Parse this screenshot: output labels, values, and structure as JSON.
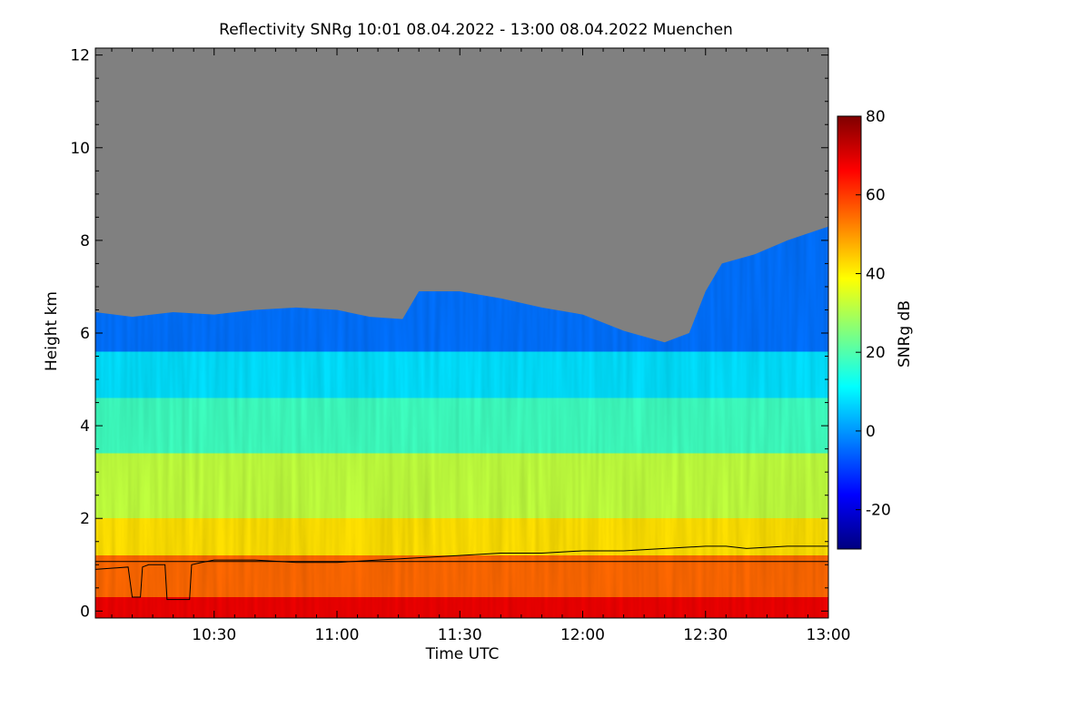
{
  "chart_data": {
    "type": "heatmap",
    "title": "Reflectivity SNRg   10:01 08.04.2022 - 13:00 08.04.2022 Muenchen",
    "xlabel": "Time UTC",
    "ylabel": "Height km",
    "x_range_minutes": [
      601,
      780
    ],
    "x_ticks": [
      {
        "label": "10:30",
        "minutes": 630
      },
      {
        "label": "11:00",
        "minutes": 660
      },
      {
        "label": "11:30",
        "minutes": 690
      },
      {
        "label": "12:00",
        "minutes": 720
      },
      {
        "label": "12:30",
        "minutes": 750
      },
      {
        "label": "13:00",
        "minutes": 780
      }
    ],
    "ylim": [
      -0.15,
      12.15
    ],
    "y_ticks": [
      0,
      2,
      4,
      6,
      8,
      10,
      12
    ],
    "colorbar": {
      "label": "SNRg dB",
      "range": [
        -30,
        80
      ],
      "ticks": [
        -20,
        0,
        20,
        40,
        60,
        80
      ],
      "colors": [
        "#00007f",
        "#0000ff",
        "#007fff",
        "#00ffff",
        "#7fff7f",
        "#ffff00",
        "#ff7f00",
        "#ff0000",
        "#7f0000"
      ]
    },
    "no_signal_color": "#808080",
    "signal_top_km": [
      {
        "t": 601,
        "h": 6.45
      },
      {
        "t": 610,
        "h": 6.35
      },
      {
        "t": 620,
        "h": 6.45
      },
      {
        "t": 630,
        "h": 6.4
      },
      {
        "t": 640,
        "h": 6.5
      },
      {
        "t": 650,
        "h": 6.55
      },
      {
        "t": 660,
        "h": 6.5
      },
      {
        "t": 668,
        "h": 6.35
      },
      {
        "t": 676,
        "h": 6.3
      },
      {
        "t": 680,
        "h": 6.9
      },
      {
        "t": 690,
        "h": 6.9
      },
      {
        "t": 700,
        "h": 6.75
      },
      {
        "t": 710,
        "h": 6.55
      },
      {
        "t": 720,
        "h": 6.4
      },
      {
        "t": 730,
        "h": 6.05
      },
      {
        "t": 740,
        "h": 5.8
      },
      {
        "t": 746,
        "h": 6.0
      },
      {
        "t": 750,
        "h": 6.9
      },
      {
        "t": 754,
        "h": 7.5
      },
      {
        "t": 762,
        "h": 7.7
      },
      {
        "t": 770,
        "h": 8.0
      },
      {
        "t": 780,
        "h": 8.3
      }
    ],
    "bands_km": [
      {
        "from": 0.0,
        "to": 0.3,
        "snr_db": 68
      },
      {
        "from": 0.3,
        "to": 1.2,
        "snr_db": 55
      },
      {
        "from": 1.2,
        "to": 2.0,
        "snr_db": 42
      },
      {
        "from": 2.0,
        "to": 3.4,
        "snr_db": 32
      },
      {
        "from": 3.4,
        "to": 4.6,
        "snr_db": 18
      },
      {
        "from": 4.6,
        "to": 5.6,
        "snr_db": 8
      },
      {
        "from": 5.6,
        "to": 6.4,
        "snr_db": -4
      }
    ],
    "line_series": [
      {
        "points": [
          {
            "t": 601,
            "h": 0.9
          },
          {
            "t": 609,
            "h": 0.95
          },
          {
            "t": 610,
            "h": 0.3
          },
          {
            "t": 612,
            "h": 0.3
          },
          {
            "t": 612.5,
            "h": 0.95
          },
          {
            "t": 614,
            "h": 1.0
          },
          {
            "t": 618,
            "h": 1.0
          },
          {
            "t": 618.5,
            "h": 0.25
          },
          {
            "t": 624,
            "h": 0.25
          },
          {
            "t": 624.5,
            "h": 1.0
          },
          {
            "t": 627,
            "h": 1.05
          },
          {
            "t": 630,
            "h": 1.1
          },
          {
            "t": 640,
            "h": 1.1
          },
          {
            "t": 650,
            "h": 1.05
          },
          {
            "t": 660,
            "h": 1.05
          },
          {
            "t": 670,
            "h": 1.1
          },
          {
            "t": 680,
            "h": 1.15
          },
          {
            "t": 690,
            "h": 1.2
          },
          {
            "t": 700,
            "h": 1.25
          },
          {
            "t": 710,
            "h": 1.25
          },
          {
            "t": 720,
            "h": 1.3
          },
          {
            "t": 730,
            "h": 1.3
          },
          {
            "t": 740,
            "h": 1.35
          },
          {
            "t": 750,
            "h": 1.4
          },
          {
            "t": 755,
            "h": 1.4
          },
          {
            "t": 760,
            "h": 1.35
          },
          {
            "t": 770,
            "h": 1.4
          },
          {
            "t": 780,
            "h": 1.4
          }
        ]
      },
      {
        "points": [
          {
            "t": 601,
            "h": 1.07
          },
          {
            "t": 780,
            "h": 1.07
          }
        ]
      }
    ]
  }
}
